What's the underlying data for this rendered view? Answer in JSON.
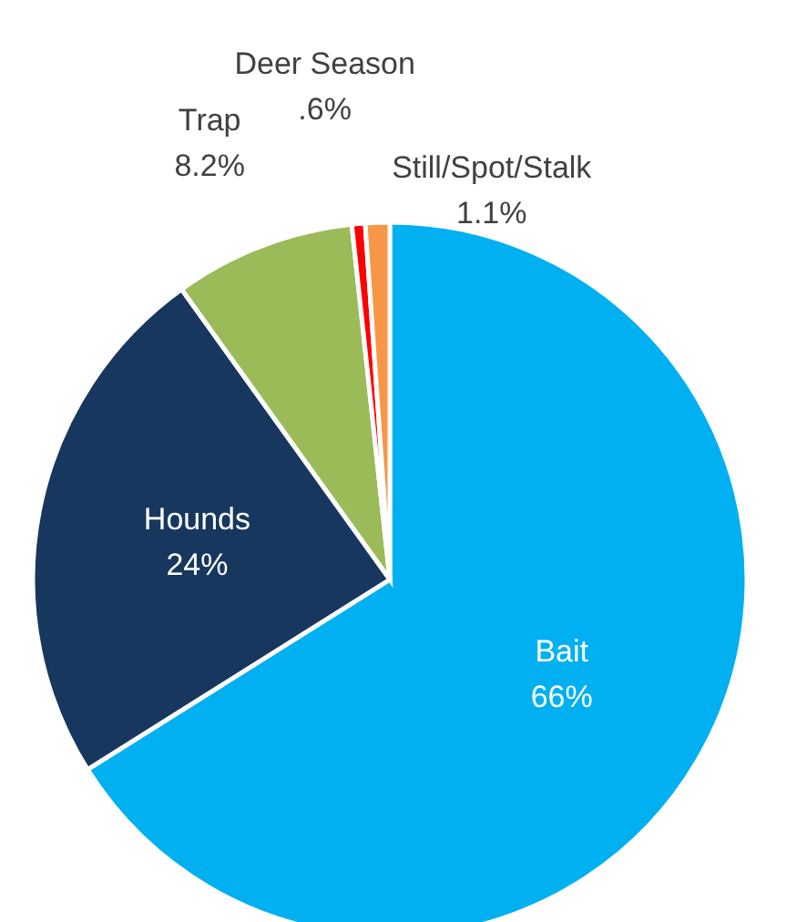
{
  "chart_data": {
    "type": "pie",
    "categories": [
      "Bait",
      "Hounds",
      "Trap",
      "Deer Season",
      "Still/Spot/Stalk"
    ],
    "values": [
      66,
      24,
      8.2,
      0.6,
      1.1
    ],
    "value_labels": [
      "66%",
      "24%",
      "8.2%",
      ".6%",
      "1.1%"
    ],
    "colors": [
      "#00b0f0",
      "#17375e",
      "#9bbb59",
      "#ff0000",
      "#f79646"
    ]
  }
}
